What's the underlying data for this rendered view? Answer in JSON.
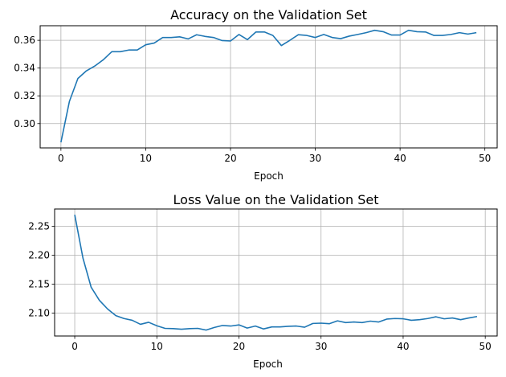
{
  "chart_data": [
    {
      "type": "line",
      "title": "Accuracy on the Validation Set",
      "xlabel": "Epoch",
      "ylabel": "",
      "xlim": [
        -2.45,
        51.45
      ],
      "ylim": [
        0.2825,
        0.3705
      ],
      "xticks": [
        0,
        10,
        20,
        30,
        40,
        50
      ],
      "yticks": [
        0.3,
        0.32,
        0.34,
        0.36
      ],
      "ytick_labels": [
        "0.30",
        "0.32",
        "0.34",
        "0.36"
      ],
      "grid": true,
      "color": "#1f77b4",
      "series": [
        {
          "x": [
            0,
            1,
            2,
            3,
            4,
            5,
            6,
            7,
            8,
            9,
            10,
            11,
            12,
            13,
            14,
            15,
            16,
            17,
            18,
            19,
            20,
            21,
            22,
            23,
            24,
            25,
            26,
            27,
            28,
            29,
            30,
            31,
            32,
            33,
            34,
            35,
            36,
            37,
            38,
            39,
            40,
            41,
            42,
            43,
            44,
            45,
            46,
            47,
            48,
            49
          ],
          "values": [
            0.2865,
            0.316,
            0.3325,
            0.338,
            0.3415,
            0.346,
            0.3518,
            0.3518,
            0.353,
            0.353,
            0.3568,
            0.358,
            0.362,
            0.362,
            0.3625,
            0.361,
            0.364,
            0.3628,
            0.362,
            0.3598,
            0.3595,
            0.3642,
            0.3605,
            0.366,
            0.366,
            0.3635,
            0.3562,
            0.36,
            0.364,
            0.3635,
            0.362,
            0.3642,
            0.362,
            0.3612,
            0.363,
            0.3642,
            0.3655,
            0.3672,
            0.3662,
            0.3638,
            0.3638,
            0.3672,
            0.3662,
            0.366,
            0.3635,
            0.3635,
            0.3642,
            0.3655,
            0.3645,
            0.3655
          ]
        }
      ]
    },
    {
      "type": "line",
      "title": "Loss Value on the Validation Set",
      "xlabel": "Epoch",
      "ylabel": "",
      "xlim": [
        -2.45,
        51.45
      ],
      "ylim": [
        2.0603,
        2.2797
      ],
      "xticks": [
        0,
        10,
        20,
        30,
        40,
        50
      ],
      "yticks": [
        2.1,
        2.15,
        2.2,
        2.25
      ],
      "ytick_labels": [
        "2.10",
        "2.15",
        "2.20",
        "2.25"
      ],
      "grid": true,
      "color": "#1f77b4",
      "series": [
        {
          "x": [
            0,
            1,
            2,
            3,
            4,
            5,
            6,
            7,
            8,
            9,
            10,
            11,
            12,
            13,
            14,
            15,
            16,
            17,
            18,
            19,
            20,
            21,
            22,
            23,
            24,
            25,
            26,
            27,
            28,
            29,
            30,
            31,
            32,
            33,
            34,
            35,
            36,
            37,
            38,
            39,
            40,
            41,
            42,
            43,
            44,
            45,
            46,
            47,
            48,
            49
          ],
          "values": [
            2.2697,
            2.195,
            2.1445,
            2.122,
            2.107,
            2.0955,
            2.0905,
            2.0875,
            2.0805,
            2.084,
            2.078,
            2.0735,
            2.073,
            2.072,
            2.073,
            2.0735,
            2.0705,
            2.075,
            2.0785,
            2.0775,
            2.0795,
            2.074,
            2.0775,
            2.0725,
            2.076,
            2.076,
            2.077,
            2.0775,
            2.0755,
            2.082,
            2.0825,
            2.0815,
            2.0865,
            2.0835,
            2.0845,
            2.0835,
            2.086,
            2.0845,
            2.0895,
            2.0905,
            2.09,
            2.0875,
            2.0885,
            2.0905,
            2.0935,
            2.09,
            2.0915,
            2.0885,
            2.0915,
            2.094
          ]
        }
      ]
    }
  ]
}
